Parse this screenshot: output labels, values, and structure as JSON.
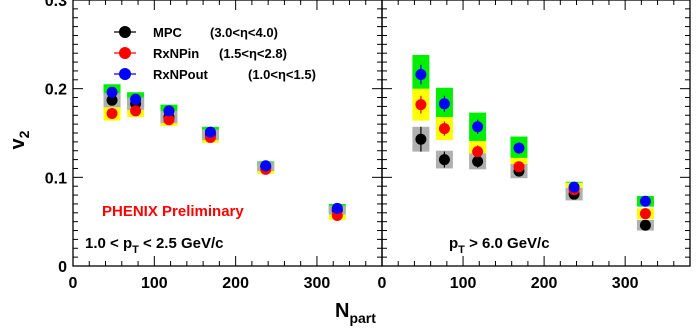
{
  "chart_data": [
    {
      "type": "scatter",
      "panel": "left",
      "annotation": "1.0 < p_T < 2.5 GeV/c",
      "watermark": "PHENIX Preliminary",
      "ylabel": "v_2",
      "xlabel": "N_part",
      "xlim": [
        0,
        380
      ],
      "ylim": [
        0,
        0.3
      ],
      "x_ticks": [
        "0",
        "100",
        "200",
        "300"
      ],
      "y_ticks": [
        "0",
        "0.1",
        "0.2",
        "0.3"
      ],
      "legend": {
        "placement": "top-left",
        "entries": [
          {
            "series": "MPC",
            "name": "MPC",
            "range": "(3.0<η<4.0)"
          },
          {
            "series": "RxNPin",
            "name": "RxNPin",
            "range": "(1.5<η<2.8)"
          },
          {
            "series": "RxNPout",
            "name": "RxNPout",
            "range": "(1.0<η<1.5)"
          }
        ]
      },
      "series": [
        {
          "name": "MPC",
          "color": "#000000",
          "sys_color": "#b0b0b0",
          "x": [
            48,
            77,
            118,
            169,
            237,
            325
          ],
          "y": [
            0.187,
            0.183,
            0.168,
            0.148,
            0.112,
            0.063
          ],
          "stat_err": [
            0.005,
            0.004,
            0.004,
            0.003,
            0.003,
            0.003
          ],
          "sys_err": [
            0.008,
            0.007,
            0.007,
            0.006,
            0.005,
            0.005
          ]
        },
        {
          "name": "RxNPin",
          "color": "#ff0000",
          "sys_color": "#ffff00",
          "x": [
            48,
            77,
            118,
            169,
            237,
            325
          ],
          "y": [
            0.172,
            0.175,
            0.165,
            0.145,
            0.109,
            0.057
          ],
          "stat_err": [
            0.004,
            0.004,
            0.003,
            0.003,
            0.003,
            0.003
          ],
          "sys_err": [
            0.008,
            0.007,
            0.007,
            0.006,
            0.005,
            0.005
          ]
        },
        {
          "name": "RxNPout",
          "color": "#0000ff",
          "sys_color": "#00ee00",
          "x": [
            48,
            77,
            118,
            169,
            237,
            325
          ],
          "y": [
            0.196,
            0.188,
            0.175,
            0.151,
            0.113,
            0.065
          ],
          "stat_err": [
            0.004,
            0.004,
            0.003,
            0.003,
            0.003,
            0.003
          ],
          "sys_err": [
            0.009,
            0.008,
            0.007,
            0.006,
            0.005,
            0.005
          ]
        }
      ]
    },
    {
      "type": "scatter",
      "panel": "right",
      "annotation": "p_T > 6.0 GeV/c",
      "xlim": [
        0,
        380
      ],
      "ylim": [
        0,
        0.3
      ],
      "x_ticks": [
        "0",
        "100",
        "200",
        "300"
      ],
      "series": [
        {
          "name": "MPC",
          "color": "#000000",
          "sys_color": "#b0b0b0",
          "x": [
            48,
            77,
            118,
            169,
            237,
            325
          ],
          "y": [
            0.143,
            0.12,
            0.118,
            0.107,
            0.081,
            0.046
          ],
          "stat_err": [
            0.014,
            0.009,
            0.007,
            0.006,
            0.004,
            0.003
          ],
          "sys_err": [
            0.014,
            0.01,
            0.009,
            0.008,
            0.007,
            0.006
          ]
        },
        {
          "name": "RxNPin",
          "color": "#ff0000",
          "sys_color": "#ffff00",
          "x": [
            48,
            77,
            118,
            169,
            237,
            325
          ],
          "y": [
            0.182,
            0.155,
            0.129,
            0.112,
            0.086,
            0.059
          ],
          "stat_err": [
            0.01,
            0.008,
            0.007,
            0.006,
            0.004,
            0.003
          ],
          "sys_err": [
            0.018,
            0.013,
            0.012,
            0.01,
            0.008,
            0.006
          ]
        },
        {
          "name": "RxNPout",
          "color": "#0000ff",
          "sys_color": "#00ee00",
          "x": [
            48,
            77,
            118,
            169,
            237,
            325
          ],
          "y": [
            0.216,
            0.183,
            0.157,
            0.133,
            0.089,
            0.073
          ],
          "stat_err": [
            0.011,
            0.009,
            0.008,
            0.006,
            0.004,
            0.003
          ],
          "sys_err": [
            0.022,
            0.018,
            0.016,
            0.013,
            0.006,
            0.006
          ]
        }
      ]
    }
  ]
}
